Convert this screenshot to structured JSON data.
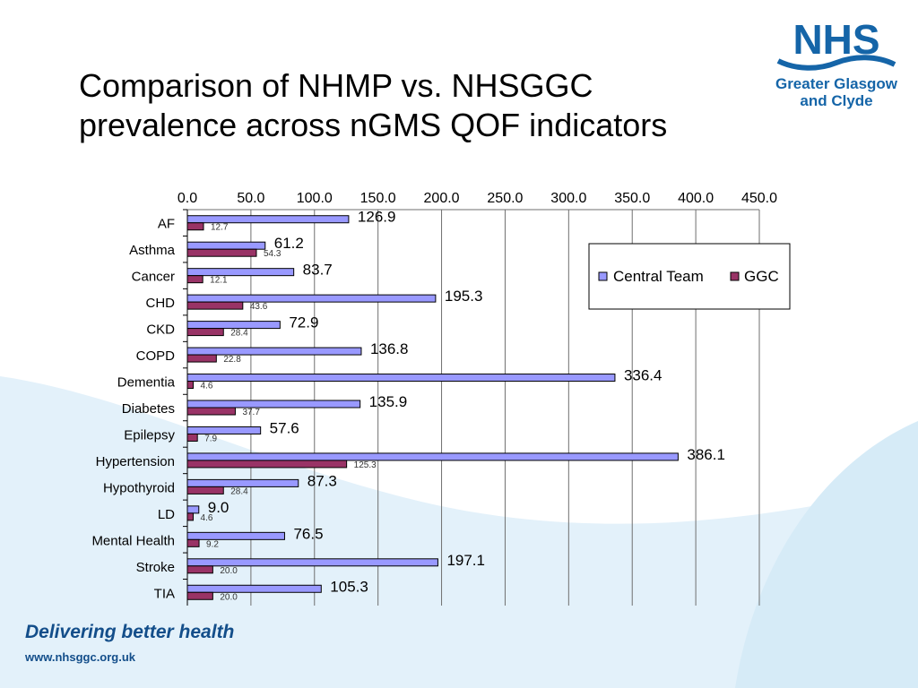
{
  "slide": {
    "title_line1": "Comparison of NHMP vs. NHSGGC",
    "title_line2": "prevalence across nGMS QOF indicators"
  },
  "logo": {
    "wordmark": "NHS",
    "org_line1": "Greater Glasgow",
    "org_line2": "and Clyde",
    "color": "#1565a8"
  },
  "footer": {
    "tagline": "Delivering better health",
    "url": "www.nhsggc.org.uk"
  },
  "chart_data": {
    "type": "bar",
    "orientation": "horizontal",
    "categories": [
      "AF",
      "Asthma",
      "Cancer",
      "CHD",
      "CKD",
      "COPD",
      "Dementia",
      "Diabetes",
      "Epilepsy",
      "Hypertension",
      "Hypothyroid",
      "LD",
      "Mental Health",
      "Stroke",
      "TIA"
    ],
    "series": [
      {
        "name": "Central Team",
        "color": "#9999ff",
        "values": [
          126.9,
          61.2,
          83.7,
          195.3,
          72.9,
          136.8,
          336.4,
          135.9,
          57.6,
          386.1,
          87.3,
          9.0,
          76.5,
          197.1,
          105.3
        ]
      },
      {
        "name": "GGC",
        "color": "#993366",
        "values": [
          12.7,
          54.3,
          12.1,
          43.6,
          28.4,
          22.8,
          4.6,
          37.7,
          7.9,
          125.3,
          28.4,
          4.6,
          9.2,
          20.0,
          20.0
        ]
      }
    ],
    "value_labels": {
      "Central Team": [
        "126.9",
        "61.2",
        "83.7",
        "195.3",
        "72.9",
        "136.8",
        "336.4",
        "135.9",
        "57.6",
        "386.1",
        "87.3",
        "9.0",
        "76.5",
        "197.1",
        "105.3"
      ],
      "GGC": [
        "12.7",
        "54.3",
        "12.1",
        "43.6",
        "28.4",
        "22.8",
        "4.6",
        "37.7",
        "7.9",
        "125.3",
        "28.4",
        "4.6",
        "9.2",
        "20.0",
        "20.0"
      ]
    },
    "xlim": [
      0,
      450
    ],
    "x_ticks": [
      "0.0",
      "50.0",
      "100.0",
      "150.0",
      "200.0",
      "250.0",
      "300.0",
      "350.0",
      "400.0",
      "450.0"
    ],
    "xaxis_position": "top",
    "grid": true,
    "legend": "right"
  }
}
